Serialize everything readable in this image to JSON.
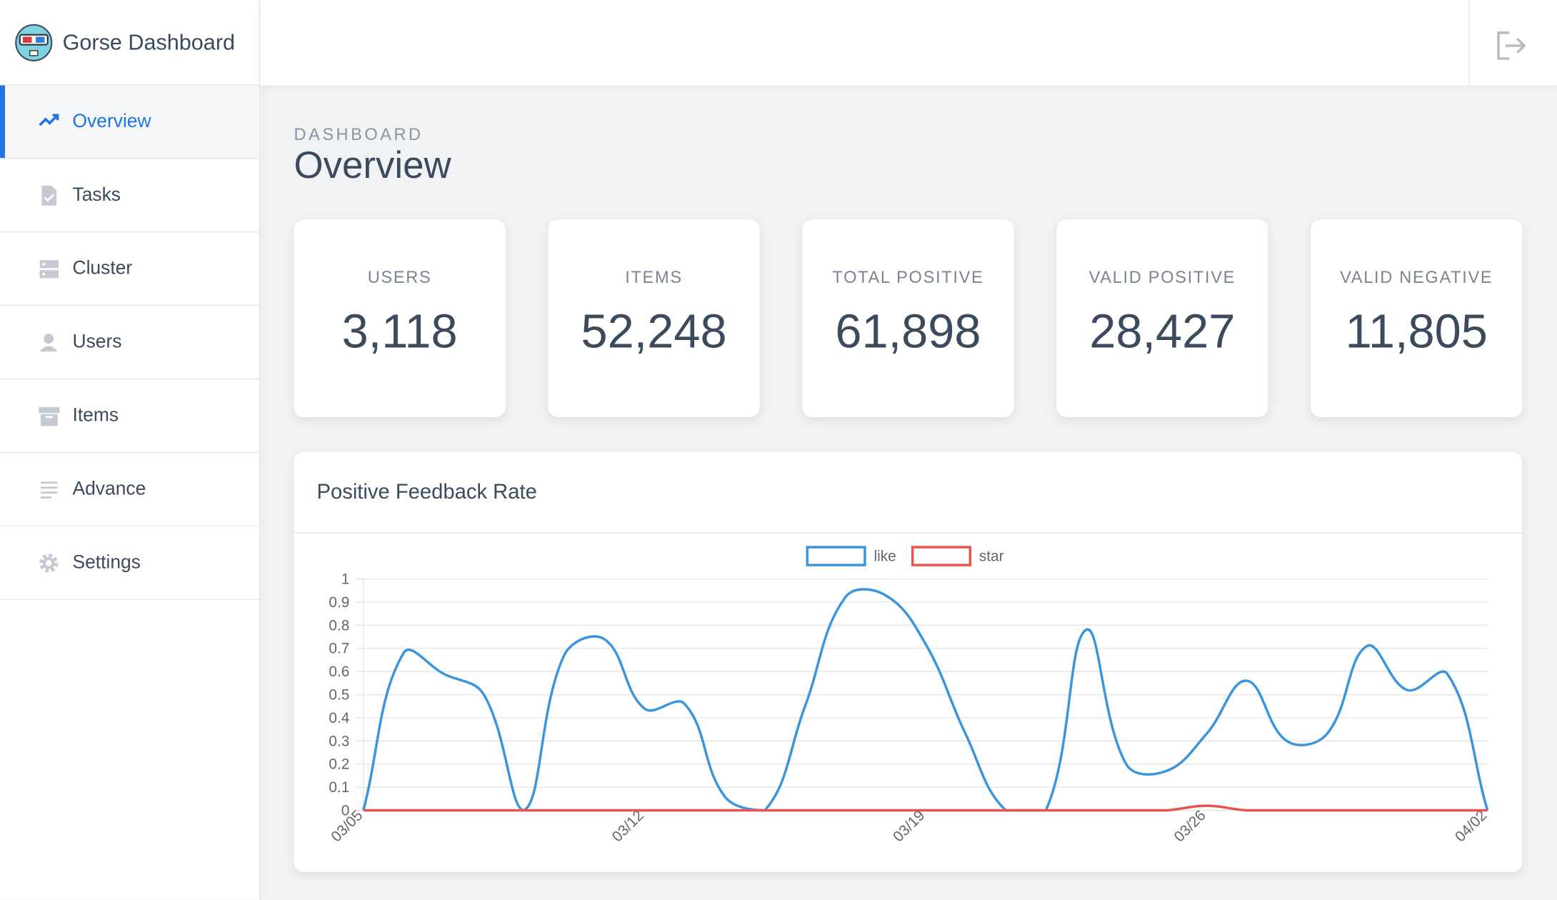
{
  "brand": "Gorse Dashboard",
  "nav": [
    "Overview",
    "Tasks",
    "Cluster",
    "Users",
    "Items",
    "Advance",
    "Settings"
  ],
  "header": {
    "breadcrumb": "DASHBOARD",
    "title": "Overview"
  },
  "stats": [
    {
      "label": "USERS",
      "value": "3,118"
    },
    {
      "label": "ITEMS",
      "value": "52,248"
    },
    {
      "label": "TOTAL POSITIVE",
      "value": "61,898"
    },
    {
      "label": "VALID POSITIVE",
      "value": "28,427"
    },
    {
      "label": "VALID NEGATIVE",
      "value": "11,805"
    }
  ],
  "chart_data": {
    "type": "line",
    "title": "Positive Feedback Rate",
    "categories": [
      "03/05",
      null,
      null,
      null,
      null,
      null,
      null,
      "03/12",
      null,
      null,
      null,
      null,
      null,
      null,
      "03/19",
      null,
      null,
      null,
      null,
      null,
      null,
      "03/26",
      null,
      null,
      null,
      null,
      null,
      null,
      "04/02"
    ],
    "series": [
      {
        "name": "like",
        "color": "#3a95dd",
        "values": [
          0,
          0.68,
          0.59,
          0.5,
          0,
          0.67,
          0.74,
          0.44,
          0.46,
          0.06,
          0,
          0.45,
          0.92,
          0.93,
          0.72,
          0.33,
          0,
          0,
          0.78,
          0.2,
          0.17,
          0.33,
          0.56,
          0.3,
          0.33,
          0.71,
          0.52,
          0.59,
          0
        ]
      },
      {
        "name": "star",
        "color": "#e8534f",
        "values": [
          0,
          0,
          0,
          0,
          0,
          0,
          0,
          0,
          0,
          0,
          0,
          0,
          0,
          0,
          0,
          0,
          0,
          0,
          0,
          0,
          0,
          0.02,
          0,
          0,
          0,
          0,
          0,
          0,
          0
        ]
      }
    ],
    "ylim": [
      0,
      1
    ],
    "yticks": [
      0,
      0.1,
      0.2,
      0.3,
      0.4,
      0.5,
      0.6,
      0.7,
      0.8,
      0.9,
      1
    ],
    "grid": true,
    "legend": "top"
  }
}
